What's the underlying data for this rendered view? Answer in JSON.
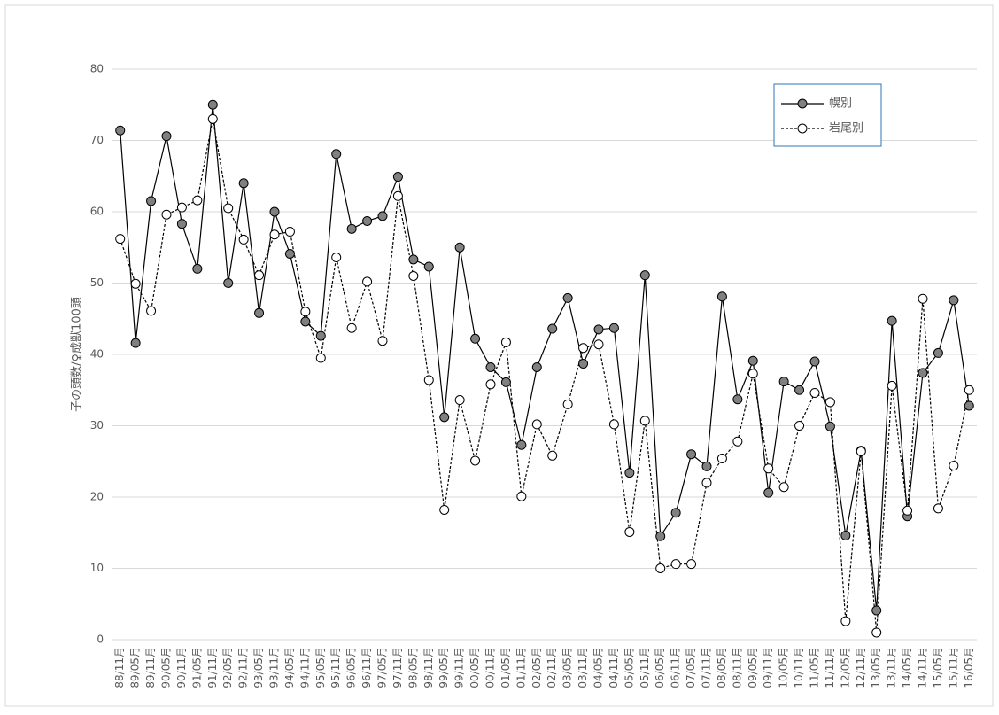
{
  "chart_data": {
    "type": "line",
    "y_label": "子の頭数/♀成獣100頭",
    "categories": [
      "88/11月",
      "89/05月",
      "89/11月",
      "90/05月",
      "90/11月",
      "91/05月",
      "91/11月",
      "92/05月",
      "92/11月",
      "93/05月",
      "93/11月",
      "94/05月",
      "94/11月",
      "95/05月",
      "95/11月",
      "96/05月",
      "96/11月",
      "97/05月",
      "97/11月",
      "98/05月",
      "98/11月",
      "99/05月",
      "99/11月",
      "00/05月",
      "00/11月",
      "01/05月",
      "01/11月",
      "02/05月",
      "02/11月",
      "03/05月",
      "03/11月",
      "04/05月",
      "04/11月",
      "05/05月",
      "05/11月",
      "06/05月",
      "06/11月",
      "07/05月",
      "07/11月",
      "08/05月",
      "08/11月",
      "09/05月",
      "09/11月",
      "10/05月",
      "10/11月",
      "11/05月",
      "11/11月",
      "12/05月",
      "12/11月",
      "13/05月",
      "13/11月",
      "14/05月",
      "14/11月",
      "15/05月",
      "15/11月",
      "16/05月"
    ],
    "series": [
      {
        "name": "幌別",
        "color": "#000000",
        "marker_fill": "#808080",
        "line_style": "solid",
        "values": [
          71.4,
          41.6,
          61.5,
          70.6,
          58.3,
          52.0,
          75.0,
          50.0,
          64.0,
          45.8,
          60.0,
          54.1,
          44.6,
          42.6,
          68.1,
          57.6,
          58.7,
          59.4,
          64.9,
          53.3,
          52.3,
          31.2,
          55.0,
          42.2,
          38.2,
          36.1,
          27.3,
          38.2,
          43.6,
          47.9,
          38.7,
          43.5,
          43.7,
          23.4,
          51.1,
          14.5,
          17.8,
          26.0,
          24.3,
          48.1,
          33.7,
          39.1,
          20.6,
          36.2,
          35.0,
          39.0,
          29.9,
          14.6,
          26.5,
          4.1,
          44.7,
          17.3,
          37.4,
          40.2,
          47.6,
          32.8
        ]
      },
      {
        "name": "岩尾別",
        "color": "#000000",
        "marker_fill": "#ffffff",
        "line_style": "dashed",
        "values": [
          56.2,
          49.9,
          46.1,
          59.6,
          60.6,
          61.6,
          73.0,
          60.5,
          56.1,
          51.1,
          56.8,
          57.2,
          46.0,
          39.5,
          53.6,
          43.7,
          50.2,
          41.9,
          62.2,
          51.0,
          36.4,
          18.2,
          33.6,
          25.1,
          35.8,
          41.7,
          20.1,
          30.2,
          25.8,
          33.0,
          40.9,
          41.4,
          30.2,
          15.1,
          30.7,
          10.0,
          10.6,
          10.6,
          22.0,
          25.4,
          27.8,
          37.3,
          24.0,
          21.4,
          30.0,
          34.6,
          33.3,
          2.6,
          26.4,
          1.0,
          35.6,
          18.1,
          47.8,
          18.4,
          24.4,
          35.0
        ]
      }
    ],
    "ylim": [
      0,
      80
    ],
    "yticks": [
      0,
      10,
      20,
      30,
      40,
      50,
      60,
      70,
      80
    ],
    "grid": true,
    "legend": "top-right"
  }
}
